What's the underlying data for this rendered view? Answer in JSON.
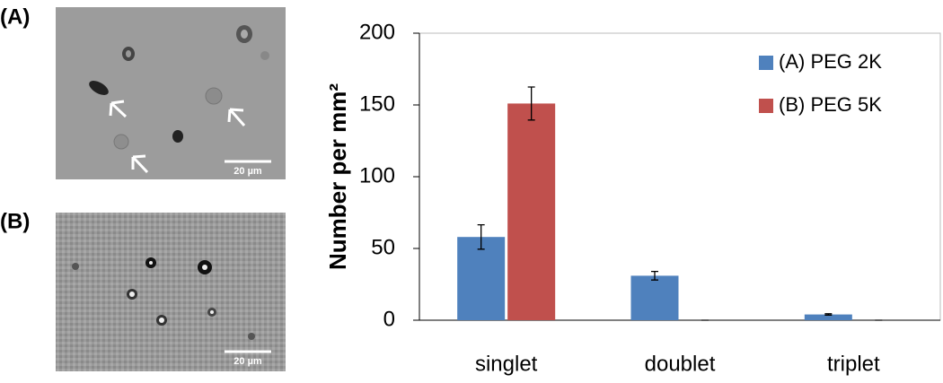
{
  "panels": [
    {
      "label": "(A)",
      "scale": "20 µm"
    },
    {
      "label": "(B)",
      "scale": "20 µm"
    }
  ],
  "chart_data": {
    "type": "bar",
    "ylabel": "Number per mm²",
    "categories": [
      "singlet",
      "doublet",
      "triplet"
    ],
    "series": [
      {
        "name": "(A) PEG 2K",
        "color": "#4f81bd",
        "values": [
          58,
          31,
          4
        ],
        "errors": [
          8.5,
          3,
          0.5
        ]
      },
      {
        "name": "(B) PEG 5K",
        "color": "#c0504d",
        "values": [
          151,
          0,
          0
        ],
        "errors": [
          11.5,
          0,
          0
        ]
      }
    ],
    "ylim": [
      0,
      200
    ],
    "yticks": [
      0,
      50,
      100,
      150,
      200
    ],
    "legend": "top-right"
  }
}
